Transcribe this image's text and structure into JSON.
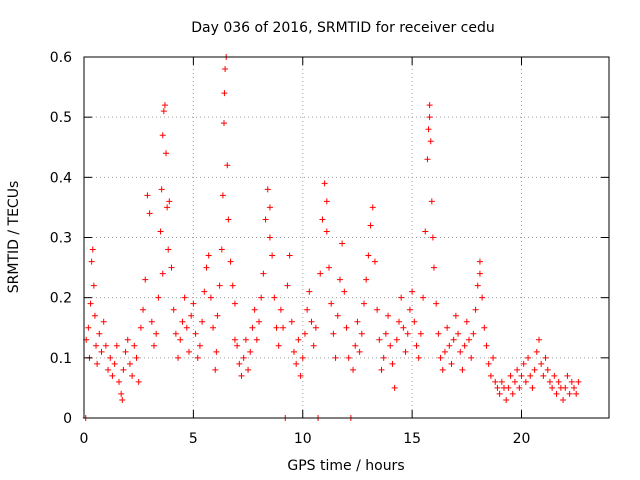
{
  "chart_data": {
    "type": "scatter",
    "title": "Day 036 of 2016, SRMTID for receiver cedu",
    "xlabel": "GPS time / hours",
    "ylabel": "SRMTID / TECUs",
    "xlim": [
      0,
      24
    ],
    "ylim": [
      0,
      0.6
    ],
    "x_ticks": [
      0,
      5,
      10,
      15,
      20
    ],
    "x_tick_labels": [
      "0",
      "5",
      "10",
      "15",
      "20"
    ],
    "y_ticks": [
      0,
      0.1,
      0.2,
      0.3,
      0.4,
      0.5,
      0.6
    ],
    "y_tick_labels": [
      "0",
      "0.1",
      "0.2",
      "0.3",
      "0.4",
      "0.5",
      "0.6"
    ],
    "grid": true,
    "marker": "+",
    "series": [
      {
        "name": "SRMTID",
        "color": "#ff0000",
        "points": [
          [
            0.1,
            0.13
          ],
          [
            0.2,
            0.15
          ],
          [
            0.25,
            0.1
          ],
          [
            0.3,
            0.19
          ],
          [
            0.35,
            0.26
          ],
          [
            0.4,
            0.28
          ],
          [
            0.45,
            0.22
          ],
          [
            0.5,
            0.17
          ],
          [
            0.55,
            0.12
          ],
          [
            0.6,
            0.09
          ],
          [
            0.7,
            0.14
          ],
          [
            0.8,
            0.11
          ],
          [
            0.9,
            0.16
          ],
          [
            1.0,
            0.12
          ],
          [
            1.1,
            0.08
          ],
          [
            1.2,
            0.1
          ],
          [
            1.3,
            0.07
          ],
          [
            1.4,
            0.09
          ],
          [
            1.5,
            0.12
          ],
          [
            1.6,
            0.06
          ],
          [
            1.7,
            0.04
          ],
          [
            1.75,
            0.03
          ],
          [
            1.8,
            0.08
          ],
          [
            1.9,
            0.11
          ],
          [
            2.0,
            0.13
          ],
          [
            2.1,
            0.09
          ],
          [
            2.2,
            0.07
          ],
          [
            2.3,
            0.12
          ],
          [
            2.4,
            0.1
          ],
          [
            2.5,
            0.06
          ],
          [
            2.6,
            0.15
          ],
          [
            2.7,
            0.18
          ],
          [
            2.8,
            0.23
          ],
          [
            2.9,
            0.37
          ],
          [
            3.0,
            0.34
          ],
          [
            3.1,
            0.16
          ],
          [
            3.2,
            0.12
          ],
          [
            3.3,
            0.14
          ],
          [
            3.4,
            0.2
          ],
          [
            3.5,
            0.31
          ],
          [
            3.55,
            0.38
          ],
          [
            3.6,
            0.47
          ],
          [
            3.65,
            0.51
          ],
          [
            3.7,
            0.52
          ],
          [
            3.75,
            0.44
          ],
          [
            3.8,
            0.35
          ],
          [
            3.85,
            0.28
          ],
          [
            3.9,
            0.36
          ],
          [
            4.0,
            0.25
          ],
          [
            4.1,
            0.18
          ],
          [
            4.2,
            0.14
          ],
          [
            4.3,
            0.1
          ],
          [
            4.4,
            0.13
          ],
          [
            4.5,
            0.16
          ],
          [
            4.6,
            0.2
          ],
          [
            4.7,
            0.15
          ],
          [
            4.8,
            0.11
          ],
          [
            4.9,
            0.17
          ],
          [
            5.0,
            0.19
          ],
          [
            5.1,
            0.14
          ],
          [
            5.2,
            0.1
          ],
          [
            5.3,
            0.12
          ],
          [
            5.4,
            0.16
          ],
          [
            5.5,
            0.21
          ],
          [
            5.6,
            0.25
          ],
          [
            5.7,
            0.27
          ],
          [
            5.8,
            0.2
          ],
          [
            5.9,
            0.15
          ],
          [
            6.0,
            0.08
          ],
          [
            6.05,
            0.11
          ],
          [
            6.1,
            0.17
          ],
          [
            6.2,
            0.22
          ],
          [
            6.3,
            0.28
          ],
          [
            6.35,
            0.37
          ],
          [
            6.4,
            0.49
          ],
          [
            6.42,
            0.54
          ],
          [
            6.45,
            0.58
          ],
          [
            6.5,
            0.6
          ],
          [
            6.55,
            0.42
          ],
          [
            6.6,
            0.33
          ],
          [
            6.7,
            0.26
          ],
          [
            6.8,
            0.22
          ],
          [
            6.9,
            0.19
          ],
          [
            7.0,
            0.12
          ],
          [
            7.1,
            0.09
          ],
          [
            7.2,
            0.07
          ],
          [
            7.3,
            0.1
          ],
          [
            7.4,
            0.13
          ],
          [
            7.5,
            0.08
          ],
          [
            7.6,
            0.11
          ],
          [
            7.7,
            0.15
          ],
          [
            7.8,
            0.18
          ],
          [
            7.9,
            0.13
          ],
          [
            8.0,
            0.16
          ],
          [
            8.1,
            0.2
          ],
          [
            8.2,
            0.24
          ],
          [
            8.3,
            0.33
          ],
          [
            8.4,
            0.38
          ],
          [
            8.5,
            0.3
          ],
          [
            8.6,
            0.27
          ],
          [
            8.7,
            0.2
          ],
          [
            8.8,
            0.15
          ],
          [
            8.9,
            0.12
          ],
          [
            9.0,
            0.18
          ],
          [
            9.1,
            0.15
          ],
          [
            9.2,
            0.0
          ],
          [
            9.3,
            0.22
          ],
          [
            9.4,
            0.27
          ],
          [
            9.5,
            0.16
          ],
          [
            9.6,
            0.11
          ],
          [
            9.7,
            0.09
          ],
          [
            9.8,
            0.13
          ],
          [
            9.9,
            0.07
          ],
          [
            10.0,
            0.1
          ],
          [
            10.1,
            0.14
          ],
          [
            10.2,
            0.18
          ],
          [
            10.3,
            0.21
          ],
          [
            10.4,
            0.16
          ],
          [
            10.5,
            0.12
          ],
          [
            10.6,
            0.15
          ],
          [
            10.7,
            0.0
          ],
          [
            10.8,
            0.24
          ],
          [
            10.9,
            0.33
          ],
          [
            11.0,
            0.39
          ],
          [
            11.1,
            0.31
          ],
          [
            11.2,
            0.25
          ],
          [
            11.3,
            0.19
          ],
          [
            11.4,
            0.14
          ],
          [
            11.5,
            0.1
          ],
          [
            11.6,
            0.17
          ],
          [
            11.7,
            0.23
          ],
          [
            11.8,
            0.29
          ],
          [
            11.9,
            0.21
          ],
          [
            12.0,
            0.15
          ],
          [
            12.1,
            0.1
          ],
          [
            12.2,
            0.0
          ],
          [
            12.3,
            0.08
          ],
          [
            12.4,
            0.12
          ],
          [
            12.5,
            0.16
          ],
          [
            12.6,
            0.11
          ],
          [
            12.7,
            0.14
          ],
          [
            12.8,
            0.19
          ],
          [
            12.9,
            0.23
          ],
          [
            13.0,
            0.27
          ],
          [
            13.1,
            0.32
          ],
          [
            13.2,
            0.35
          ],
          [
            13.3,
            0.26
          ],
          [
            13.4,
            0.18
          ],
          [
            13.5,
            0.13
          ],
          [
            13.6,
            0.08
          ],
          [
            13.7,
            0.1
          ],
          [
            13.8,
            0.14
          ],
          [
            13.9,
            0.17
          ],
          [
            14.0,
            0.12
          ],
          [
            14.1,
            0.09
          ],
          [
            14.2,
            0.05
          ],
          [
            14.3,
            0.13
          ],
          [
            14.4,
            0.16
          ],
          [
            14.5,
            0.2
          ],
          [
            14.6,
            0.15
          ],
          [
            14.7,
            0.11
          ],
          [
            14.8,
            0.14
          ],
          [
            14.9,
            0.18
          ],
          [
            15.0,
            0.21
          ],
          [
            15.1,
            0.16
          ],
          [
            15.2,
            0.12
          ],
          [
            15.3,
            0.1
          ],
          [
            15.4,
            0.14
          ],
          [
            15.5,
            0.2
          ],
          [
            15.6,
            0.31
          ],
          [
            15.7,
            0.43
          ],
          [
            15.75,
            0.48
          ],
          [
            15.8,
            0.52
          ],
          [
            15.85,
            0.46
          ],
          [
            15.9,
            0.36
          ],
          [
            15.95,
            0.3
          ],
          [
            16.0,
            0.25
          ],
          [
            16.1,
            0.19
          ],
          [
            16.2,
            0.14
          ],
          [
            16.3,
            0.1
          ],
          [
            16.4,
            0.08
          ],
          [
            16.5,
            0.11
          ],
          [
            16.6,
            0.15
          ],
          [
            16.7,
            0.12
          ],
          [
            16.8,
            0.09
          ],
          [
            16.9,
            0.13
          ],
          [
            17.0,
            0.17
          ],
          [
            17.1,
            0.14
          ],
          [
            17.2,
            0.11
          ],
          [
            17.3,
            0.08
          ],
          [
            17.4,
            0.12
          ],
          [
            17.5,
            0.16
          ],
          [
            17.6,
            0.13
          ],
          [
            17.7,
            0.1
          ],
          [
            17.8,
            0.14
          ],
          [
            17.9,
            0.18
          ],
          [
            18.0,
            0.22
          ],
          [
            18.1,
            0.26
          ],
          [
            18.2,
            0.2
          ],
          [
            18.3,
            0.15
          ],
          [
            18.4,
            0.12
          ],
          [
            18.5,
            0.09
          ],
          [
            18.6,
            0.07
          ],
          [
            18.7,
            0.1
          ],
          [
            18.8,
            0.06
          ],
          [
            18.9,
            0.05
          ],
          [
            19.0,
            0.04
          ],
          [
            19.1,
            0.06
          ],
          [
            19.2,
            0.05
          ],
          [
            19.3,
            0.03
          ],
          [
            19.4,
            0.05
          ],
          [
            19.5,
            0.07
          ],
          [
            19.6,
            0.04
          ],
          [
            19.7,
            0.06
          ],
          [
            19.8,
            0.08
          ],
          [
            19.9,
            0.05
          ],
          [
            20.0,
            0.07
          ],
          [
            20.1,
            0.09
          ],
          [
            20.2,
            0.06
          ],
          [
            20.3,
            0.1
          ],
          [
            20.4,
            0.07
          ],
          [
            20.5,
            0.05
          ],
          [
            20.6,
            0.08
          ],
          [
            20.7,
            0.11
          ],
          [
            20.8,
            0.13
          ],
          [
            20.9,
            0.09
          ],
          [
            21.0,
            0.07
          ],
          [
            21.1,
            0.1
          ],
          [
            21.2,
            0.08
          ],
          [
            21.3,
            0.06
          ],
          [
            21.4,
            0.05
          ],
          [
            21.5,
            0.07
          ],
          [
            21.6,
            0.04
          ],
          [
            21.7,
            0.06
          ],
          [
            21.8,
            0.05
          ],
          [
            21.9,
            0.03
          ],
          [
            22.0,
            0.05
          ],
          [
            22.1,
            0.07
          ],
          [
            22.2,
            0.04
          ],
          [
            22.3,
            0.06
          ],
          [
            22.4,
            0.05
          ],
          [
            22.5,
            0.04
          ],
          [
            22.6,
            0.06
          ],
          [
            0.08,
            0.0
          ],
          [
            3.6,
            0.24
          ],
          [
            6.9,
            0.13
          ],
          [
            8.5,
            0.35
          ],
          [
            11.1,
            0.36
          ],
          [
            15.8,
            0.5
          ],
          [
            18.1,
            0.24
          ]
        ]
      }
    ]
  }
}
